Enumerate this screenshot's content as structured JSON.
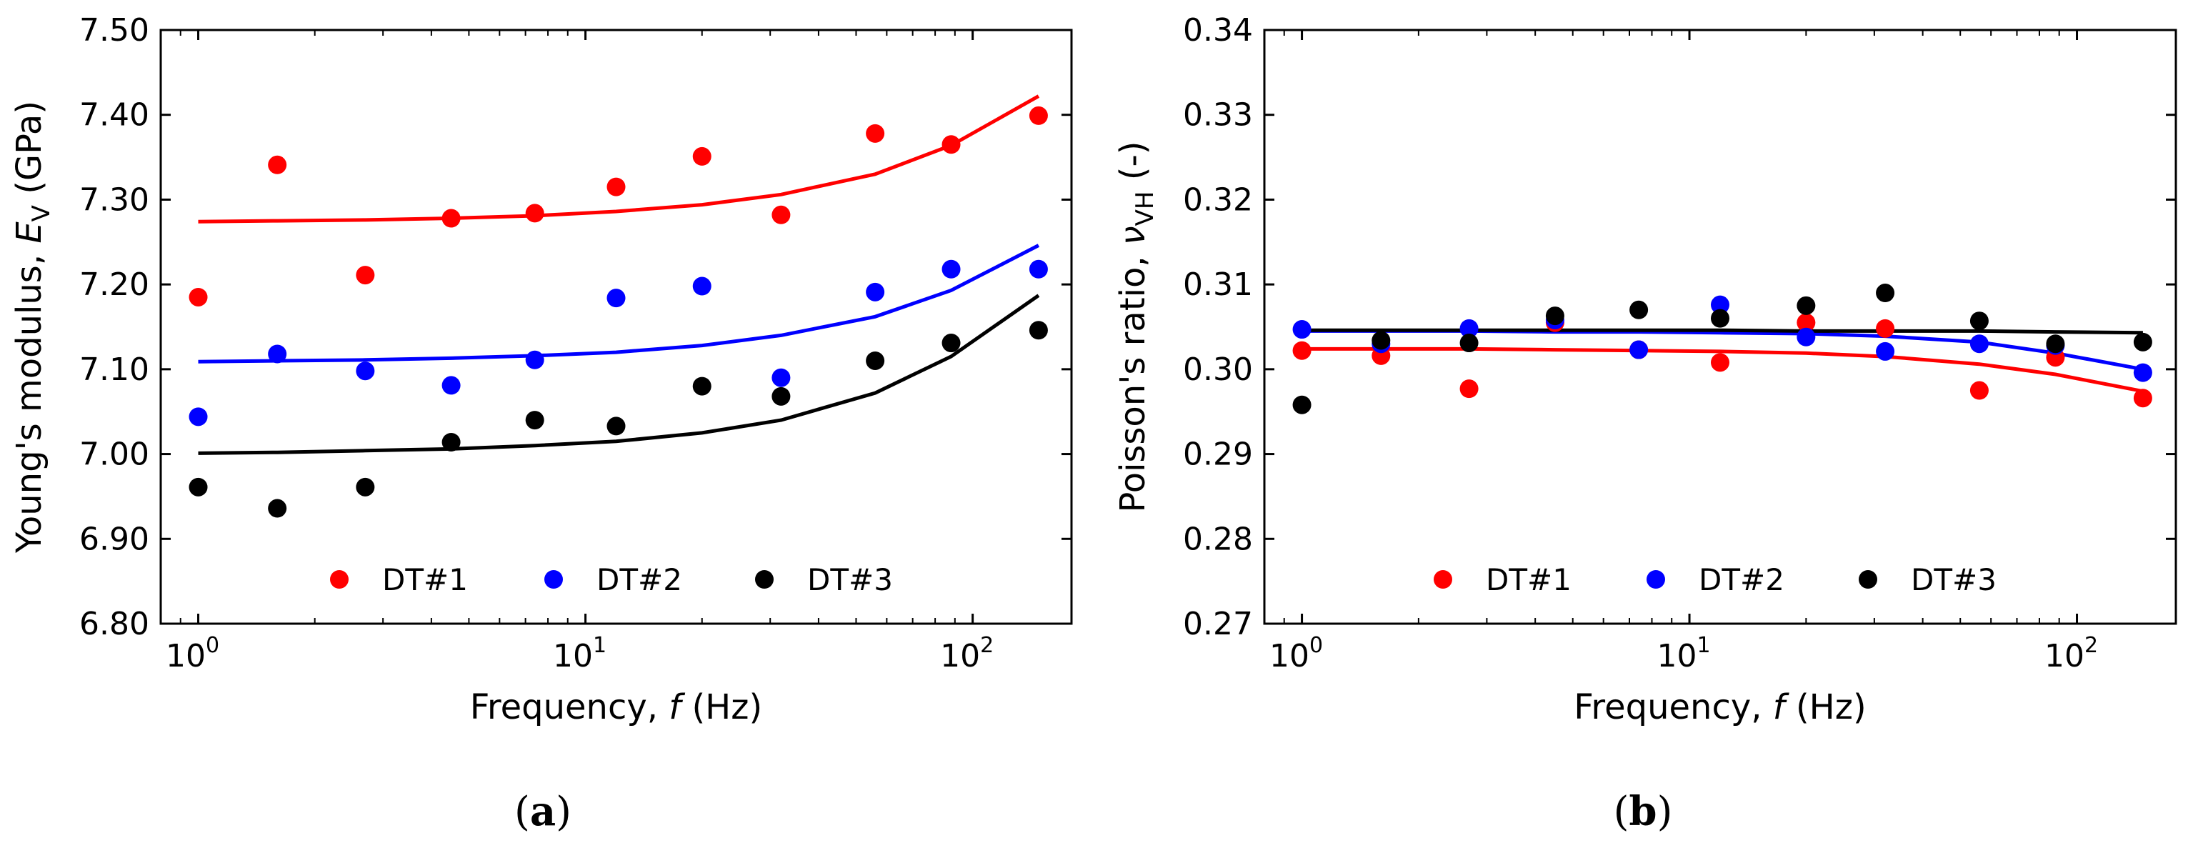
{
  "chart_data": [
    {
      "type": "scatter",
      "panel_label": "(a)",
      "panel_letter": "a",
      "xlabel": {
        "prefix": "Frequency, ",
        "var": "f",
        "suffix": " (Hz)"
      },
      "ylabel": {
        "prefix": "Young's modulus, ",
        "var": "E",
        "sub": "V",
        "suffix": " (GPa)"
      },
      "xscale": "log",
      "xlim": [
        0.8,
        180
      ],
      "ylim": [
        6.8,
        7.5
      ],
      "x_ticks": [
        {
          "value": 1,
          "exp": "0"
        },
        {
          "value": 10,
          "exp": "1"
        },
        {
          "value": 100,
          "exp": "2"
        }
      ],
      "y_ticks": [
        "6.80",
        "6.90",
        "7.00",
        "7.10",
        "7.20",
        "7.30",
        "7.40",
        "7.50"
      ],
      "legend_position": "bottom-center",
      "x": [
        1.0,
        1.6,
        2.7,
        4.5,
        7.4,
        12.0,
        20.0,
        32.0,
        56.0,
        88.0,
        148.0
      ],
      "series": [
        {
          "name": "DT#1",
          "color": "#ff0000",
          "points": [
            7.185,
            7.341,
            7.211,
            7.278,
            7.284,
            7.315,
            7.351,
            7.282,
            7.378,
            7.365,
            7.399
          ],
          "fit": [
            7.274,
            7.275,
            7.276,
            7.278,
            7.281,
            7.286,
            7.294,
            7.306,
            7.33,
            7.364,
            7.422
          ]
        },
        {
          "name": "DT#2",
          "color": "#0000ff",
          "points": [
            7.044,
            7.118,
            7.098,
            7.081,
            7.111,
            7.184,
            7.198,
            7.09,
            7.191,
            7.218,
            7.218
          ],
          "fit": [
            7.109,
            7.11,
            7.111,
            7.113,
            7.116,
            7.12,
            7.128,
            7.14,
            7.162,
            7.193,
            7.246
          ]
        },
        {
          "name": "DT#3",
          "color": "#000000",
          "points": [
            6.961,
            6.936,
            6.961,
            7.014,
            7.04,
            7.033,
            7.08,
            7.068,
            7.11,
            7.131,
            7.146
          ],
          "fit": [
            7.001,
            7.002,
            7.004,
            7.006,
            7.01,
            7.015,
            7.025,
            7.04,
            7.072,
            7.115,
            7.187
          ]
        }
      ]
    },
    {
      "type": "scatter",
      "panel_label": "(b)",
      "panel_letter": "b",
      "xlabel": {
        "prefix": "Frequency, ",
        "var": "f",
        "suffix": " (Hz)"
      },
      "ylabel": {
        "prefix": "Poisson's ratio, ",
        "var": "ν",
        "sub": "VH",
        "suffix": " (-)"
      },
      "xscale": "log",
      "xlim": [
        0.8,
        180
      ],
      "ylim": [
        0.27,
        0.34
      ],
      "x_ticks": [
        {
          "value": 1,
          "exp": "0"
        },
        {
          "value": 10,
          "exp": "1"
        },
        {
          "value": 100,
          "exp": "2"
        }
      ],
      "y_ticks": [
        "0.27",
        "0.28",
        "0.29",
        "0.30",
        "0.31",
        "0.32",
        "0.33",
        "0.34"
      ],
      "legend_position": "bottom-center",
      "x": [
        1.0,
        1.6,
        2.7,
        4.5,
        7.4,
        12.0,
        20.0,
        32.0,
        56.0,
        88.0,
        148.0
      ],
      "series": [
        {
          "name": "DT#1",
          "color": "#ff0000",
          "points": [
            0.3022,
            0.3016,
            0.2977,
            0.3055,
            0.3023,
            0.3008,
            0.3055,
            0.3048,
            0.2975,
            0.3014,
            0.2966
          ],
          "fit": [
            0.3024,
            0.3024,
            0.3024,
            0.3023,
            0.3022,
            0.3021,
            0.3019,
            0.3015,
            0.3006,
            0.2994,
            0.2974
          ]
        },
        {
          "name": "DT#2",
          "color": "#0000ff",
          "points": [
            0.3047,
            0.303,
            0.3048,
            0.3058,
            0.3023,
            0.3076,
            0.3038,
            0.3021,
            0.303,
            0.3028,
            0.2996
          ],
          "fit": [
            0.3045,
            0.3045,
            0.3045,
            0.3044,
            0.3044,
            0.3043,
            0.3042,
            0.3039,
            0.3032,
            0.3019,
            0.3
          ]
        },
        {
          "name": "DT#3",
          "color": "#000000",
          "points": [
            0.2958,
            0.3034,
            0.3031,
            0.3063,
            0.307,
            0.306,
            0.3075,
            0.309,
            0.3057,
            0.303,
            0.3032
          ],
          "fit": [
            0.3046,
            0.3046,
            0.3046,
            0.3046,
            0.3046,
            0.3046,
            0.3045,
            0.3045,
            0.3045,
            0.3044,
            0.3043
          ]
        }
      ]
    }
  ]
}
